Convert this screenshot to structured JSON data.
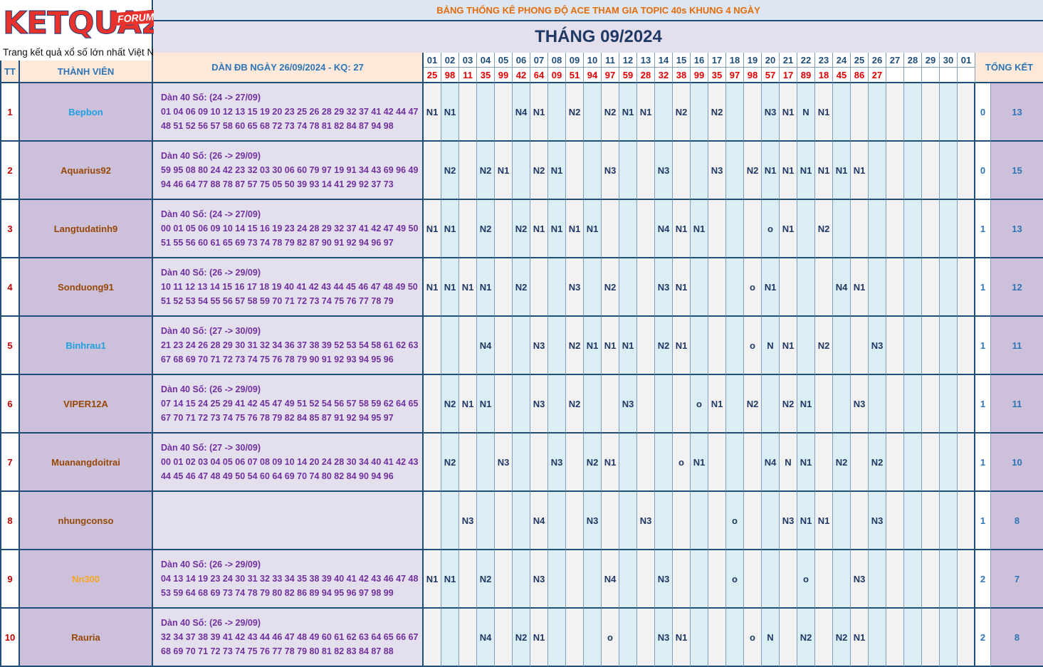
{
  "logo": {
    "brand": "KETQUA2",
    "badge": "FORUM",
    "tagline": "Trang kết quả xổ số lớn nhất Việt Nam"
  },
  "title": "BẢNG THỐNG KÊ PHONG ĐỘ ACE THAM GIA TOPIC 40s KHUNG 4 NGÀY",
  "month": "THÁNG 09/2024",
  "headers": {
    "tt": "TT",
    "member": "THÀNH VIÊN",
    "dan": "DÀN ĐB NGÀY 26/09/2024 - KQ: 27",
    "summary": "TỔNG KẾT"
  },
  "days": [
    "01",
    "02",
    "03",
    "04",
    "05",
    "06",
    "07",
    "08",
    "09",
    "10",
    "11",
    "12",
    "13",
    "14",
    "15",
    "16",
    "17",
    "18",
    "19",
    "20",
    "21",
    "22",
    "23",
    "24",
    "25",
    "26",
    "27",
    "28",
    "29",
    "30",
    "01"
  ],
  "results": [
    "25",
    "98",
    "11",
    "35",
    "99",
    "42",
    "64",
    "09",
    "51",
    "94",
    "97",
    "59",
    "28",
    "32",
    "38",
    "99",
    "35",
    "97",
    "98",
    "57",
    "17",
    "89",
    "18",
    "45",
    "86",
    "27",
    "",
    "",
    "",
    "",
    ""
  ],
  "colors": {
    "accent": "#1f4e79",
    "title_orange": "#e46c0a",
    "result_red": "#e00000",
    "dan_purple": "#7030a0",
    "name_bg": "#ccc0da"
  },
  "members": [
    {
      "tt": "1",
      "name": "Bepbon",
      "name_color": "#1e9fe0",
      "dan_title": "Dàn 40 Số: (24 -> 27/09)",
      "dan_line1": "01 04 06 09 10 12 13 15 19 20 23 25 26 28 29 32 37 41 42 44 47",
      "dan_line2": "48 51 52 56 57 58 60 65 68 72 73 74 78 81 82 84 87 94 98",
      "marks": [
        "N1",
        "N1",
        "",
        "",
        "",
        "N4",
        "N1",
        "",
        "N2",
        "",
        "N2",
        "N1",
        "N1",
        "",
        "N2",
        "",
        "N2",
        "",
        "",
        "N3",
        "N1",
        "N",
        "N1",
        "",
        "",
        "",
        "",
        "",
        "",
        "",
        ""
      ],
      "s1": "0",
      "s2": "13"
    },
    {
      "tt": "2",
      "name": "Aquarius92",
      "name_color": "#974706",
      "dan_title": "Dàn 40 Số: (26 -> 29/09)",
      "dan_line1": "59 95 08 80 24 42 23 32 03 30 06 60 79 97 19 91 34 43 69 96 49",
      "dan_line2": "94 46 64 77 88 78 87 57 75 05 50 39 93 14 41 29 92 37 73",
      "marks": [
        "",
        "N2",
        "",
        "N2",
        "N1",
        "",
        "N2",
        "N1",
        "",
        "",
        "N3",
        "",
        "",
        "N3",
        "",
        "",
        "N3",
        "",
        "N2",
        "N1",
        "N1",
        "N1",
        "N1",
        "N1",
        "N1",
        "",
        "",
        "",
        "",
        "",
        ""
      ],
      "s1": "0",
      "s2": "15"
    },
    {
      "tt": "3",
      "name": "Langtudatinh9",
      "name_color": "#974706",
      "dan_title": "Dàn 40 Số: (24 -> 27/09)",
      "dan_line1": "00 01 05 06 09 10 14 15 16 19 23 24 28 29 32 37 41 42 47 49 50",
      "dan_line2": "51 55 56 60 61 65 69 73 74 78 79 82 87 90 91 92 94 96 97",
      "marks": [
        "N1",
        "N1",
        "",
        "N2",
        "",
        "N2",
        "N1",
        "N1",
        "N1",
        "N1",
        "",
        "",
        "",
        "N4",
        "N1",
        "N1",
        "",
        "",
        "",
        "o",
        "N1",
        "",
        "N2",
        "",
        "",
        "",
        "",
        "",
        "",
        "",
        ""
      ],
      "s1": "1",
      "s2": "13"
    },
    {
      "tt": "4",
      "name": "Sonduong91",
      "name_color": "#974706",
      "dan_title": "Dàn 40 Số: (26 -> 29/09)",
      "dan_line1": "10 11 12 13 14 15 16 17 18 19 40 41 42 43 44 45 46 47 48 49 50",
      "dan_line2": "51 52 53 54 55 56 57 58 59 70 71 72 73 74 75 76 77 78 79",
      "marks": [
        "N1",
        "N1",
        "N1",
        "N1",
        "",
        "N2",
        "",
        "",
        "N3",
        "",
        "N2",
        "",
        "",
        "N3",
        "N1",
        "",
        "",
        "",
        "o",
        "N1",
        "",
        "",
        "",
        "N4",
        "N1",
        "",
        "",
        "",
        "",
        "",
        ""
      ],
      "s1": "1",
      "s2": "12"
    },
    {
      "tt": "5",
      "name": "Binhrau1",
      "name_color": "#1e9fe0",
      "dan_title": "Dàn 40 Số: (27 -> 30/09)",
      "dan_line1": "21 23 24 26 28 29 30 31 32 34 36 37 38 39 52 53 54 58 61 62 63",
      "dan_line2": "67 68 69 70 71 72 73 74 75 76 78 79 90 91 92 93 94 95 96",
      "marks": [
        "",
        "",
        "",
        "N4",
        "",
        "",
        "N3",
        "",
        "N2",
        "N1",
        "N1",
        "N1",
        "",
        "N2",
        "N1",
        "",
        "",
        "",
        "o",
        "N",
        "N1",
        "",
        "N2",
        "",
        "",
        "N3",
        "",
        "",
        "",
        "",
        ""
      ],
      "s1": "1",
      "s2": "11"
    },
    {
      "tt": "6",
      "name": "VIPER12A",
      "name_color": "#974706",
      "dan_title": "Dàn 40 Số: (26 -> 29/09)",
      "dan_line1": "07 14 15 24 25 29 41 42 45 47 49 51 52 54 56 57 58 59 62 64 65",
      "dan_line2": "67 70 71 72 73 74 75 76 78 79 82 84 85 87 91 92 94 95 97",
      "marks": [
        "",
        "N2",
        "N1",
        "N1",
        "",
        "",
        "N3",
        "",
        "N2",
        "",
        "",
        "N3",
        "",
        "",
        "",
        "o",
        "N1",
        "",
        "N2",
        "",
        "N2",
        "N1",
        "",
        "",
        "N3",
        "",
        "",
        "",
        "",
        "",
        ""
      ],
      "s1": "1",
      "s2": "11"
    },
    {
      "tt": "7",
      "name": "Muanangdoitrai",
      "name_color": "#974706",
      "dan_title": "Dàn 40 Số: (27 -> 30/09)",
      "dan_line1": "00 01 02 03 04 05 06 07 08 09 10 14 20 24 28 30 34 40 41 42 43",
      "dan_line2": "44 45 46 47 48 49 50 54 60 64 69 70 74 80 82 84 90 94 96",
      "marks": [
        "",
        "N2",
        "",
        "",
        "N3",
        "",
        "",
        "N3",
        "",
        "N2",
        "N1",
        "",
        "",
        "",
        "o",
        "N1",
        "",
        "",
        "",
        "N4",
        "N",
        "N1",
        "",
        "N2",
        "",
        "N2",
        "",
        "",
        "",
        "",
        ""
      ],
      "s1": "1",
      "s2": "10"
    },
    {
      "tt": "8",
      "name": "nhungconso",
      "name_color": "#974706",
      "dan_title": "",
      "dan_line1": "",
      "dan_line2": "",
      "marks": [
        "",
        "",
        "N3",
        "",
        "",
        "",
        "N4",
        "",
        "",
        "N3",
        "",
        "",
        "N3",
        "",
        "",
        "",
        "",
        "o",
        "",
        "",
        "N3",
        "N1",
        "N1",
        "",
        "",
        "N3",
        "",
        "",
        "",
        "",
        ""
      ],
      "s1": "1",
      "s2": "8"
    },
    {
      "tt": "9",
      "name": "Nn300",
      "name_color": "#f5a623",
      "dan_title": "Dàn 40 Số: (26 -> 29/09)",
      "dan_line1": "04 13 14 19 23 24 30 31 32 33 34 35 38 39 40 41 42 43 46 47 48",
      "dan_line2": "53 59 64 68 69 73 74 78 79 80 82 86 89 94 95 96 97 98 99",
      "marks": [
        "N1",
        "N1",
        "",
        "N2",
        "",
        "",
        "N3",
        "",
        "",
        "",
        "N4",
        "",
        "",
        "N3",
        "",
        "",
        "",
        "o",
        "",
        "",
        "",
        "o",
        "",
        "",
        "N3",
        "",
        "",
        "",
        "",
        "",
        ""
      ],
      "s1": "2",
      "s2": "7"
    },
    {
      "tt": "10",
      "name": "Rauria",
      "name_color": "#974706",
      "dan_title": "Dàn 40 Số: (26 -> 29/09)",
      "dan_line1": "32 34 37 38 39 41 42 43 44 46 47 48 49 60 61 62 63 64 65 66 67",
      "dan_line2": "68 69 70 71 72 73 74 75 76 77 78 79 80 81 82 83 84 87 88",
      "marks": [
        "",
        "",
        "",
        "N4",
        "",
        "N2",
        "N1",
        "",
        "",
        "",
        "o",
        "",
        "",
        "N3",
        "N1",
        "",
        "",
        "",
        "o",
        "N",
        "",
        "N2",
        "",
        "N2",
        "N1",
        "",
        "",
        "",
        "",
        "",
        ""
      ],
      "s1": "2",
      "s2": "8"
    }
  ]
}
